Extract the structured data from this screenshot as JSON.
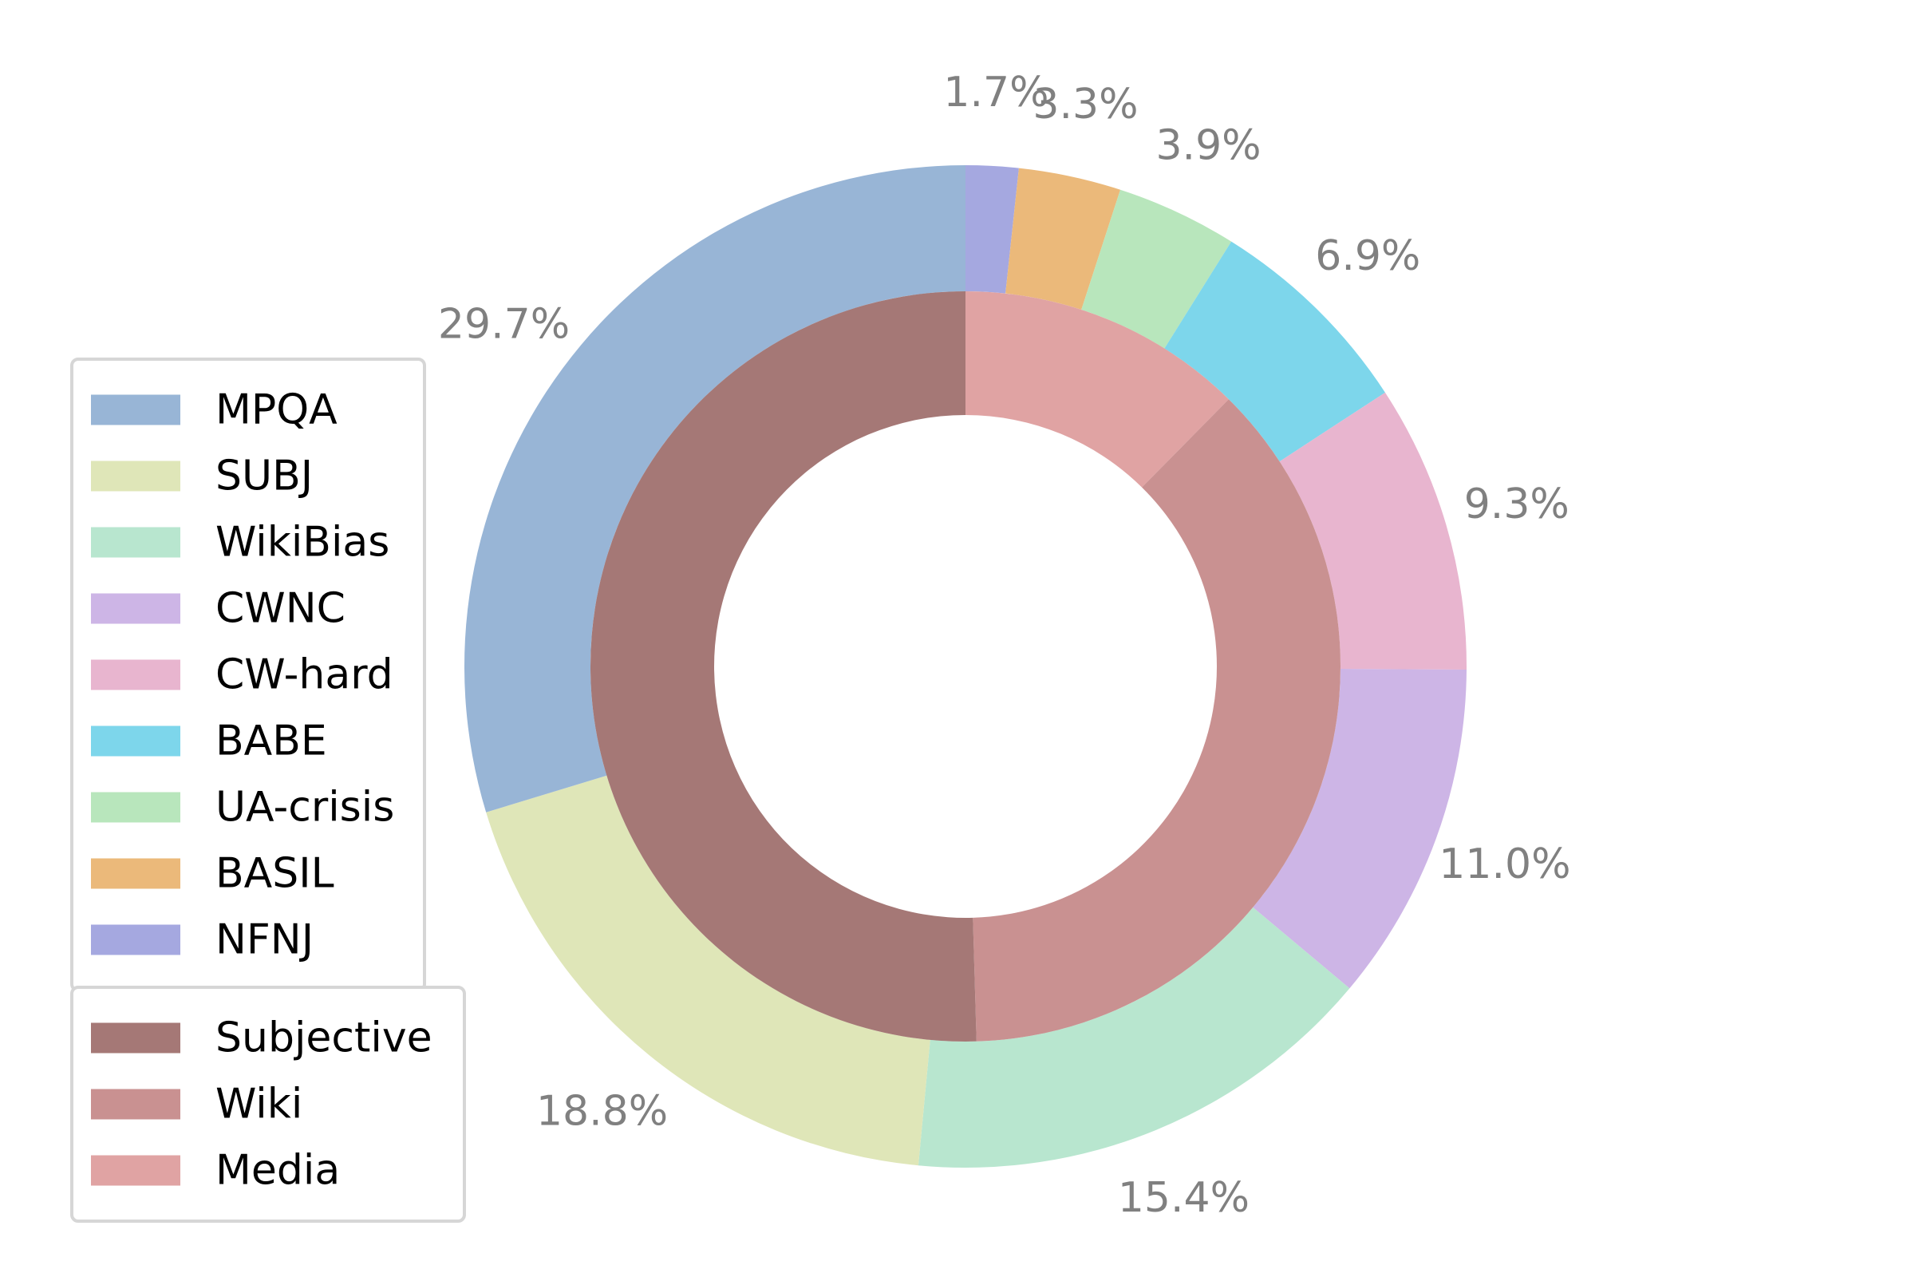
{
  "chart_data": {
    "type": "pie",
    "variant": "nested-donut",
    "start_angle_deg": 90,
    "direction": "clockwise",
    "outer_ring": {
      "series": [
        {
          "name": "NFNJ",
          "value": 1.7,
          "label": "1.7%",
          "color": "#a5a8e0"
        },
        {
          "name": "BASIL",
          "value": 3.3,
          "label": "3.3%",
          "color": "#ebb97a"
        },
        {
          "name": "UA-crisis",
          "value": 3.9,
          "label": "3.9%",
          "color": "#b8e6bc"
        },
        {
          "name": "BABE",
          "value": 6.9,
          "label": "6.9%",
          "color": "#7dd6eb"
        },
        {
          "name": "CW-hard",
          "value": 9.3,
          "label": "9.3%",
          "color": "#e8b5cf"
        },
        {
          "name": "CWNC",
          "value": 11.0,
          "label": "11.0%",
          "color": "#cdb5e6"
        },
        {
          "name": "WikiBias",
          "value": 15.4,
          "label": "15.4%",
          "color": "#b8e6cf"
        },
        {
          "name": "SUBJ",
          "value": 18.8,
          "label": "18.8%",
          "color": "#dfe6b8"
        },
        {
          "name": "MPQA",
          "value": 29.7,
          "label": "29.7%",
          "color": "#98b5d6"
        }
      ]
    },
    "inner_ring": {
      "series": [
        {
          "name": "Media",
          "value": 11.9,
          "color": "#e0a3a3"
        },
        {
          "name": "Wiki",
          "value": 35.7,
          "color": "#c99191"
        },
        {
          "name": "Subjective",
          "value": 48.5,
          "color": "#a57876"
        }
      ]
    },
    "legends": [
      {
        "placement": "left",
        "entries": [
          "MPQA",
          "SUBJ",
          "WikiBias",
          "CWNC",
          "CW-hard",
          "BABE",
          "UA-crisis",
          "BASIL",
          "NFNJ"
        ]
      },
      {
        "placement": "lower-left",
        "entries": [
          "Subjective",
          "Wiki",
          "Media"
        ]
      }
    ]
  }
}
